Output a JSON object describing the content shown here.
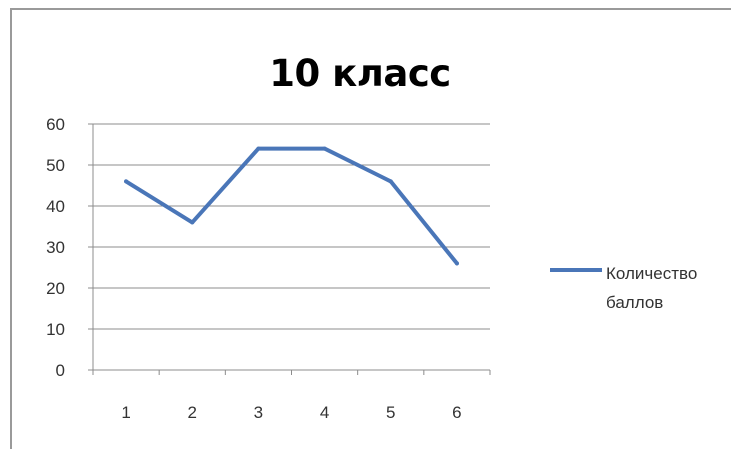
{
  "chart_data": {
    "type": "line",
    "title": "10 класс",
    "categories": [
      "1",
      "2",
      "3",
      "4",
      "5",
      "6"
    ],
    "series": [
      {
        "name": "Количество баллов",
        "values": [
          46,
          36,
          54,
          54,
          46,
          26
        ],
        "color": "#4a76b8"
      }
    ],
    "yticks": [
      "0",
      "10",
      "20",
      "30",
      "40",
      "50",
      "60"
    ],
    "ylim": [
      0,
      60
    ],
    "grid": true,
    "legend": "right"
  }
}
